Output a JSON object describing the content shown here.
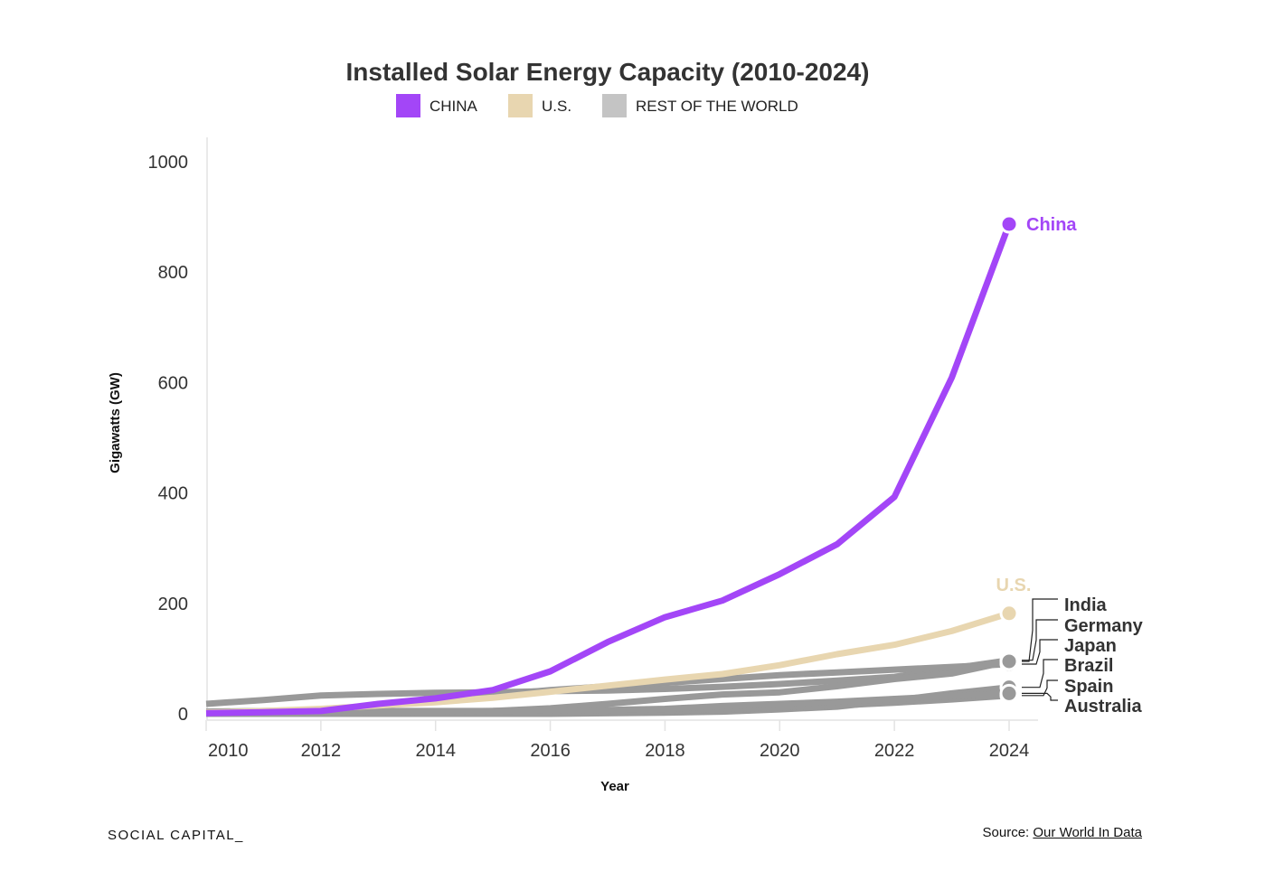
{
  "chart_data": {
    "type": "line",
    "title": "Installed Solar Energy Capacity (2010-2024)",
    "xlabel": "Year",
    "ylabel": "Gigawatts (GW)",
    "xlim": [
      2010,
      2024.5
    ],
    "ylim": [
      0,
      1000
    ],
    "x_ticks": [
      2010,
      2012,
      2014,
      2016,
      2018,
      2020,
      2022,
      2024
    ],
    "y_ticks": [
      0,
      200,
      400,
      600,
      800,
      1000
    ],
    "grid": false,
    "legend": {
      "placement": "top-center",
      "entries": [
        {
          "label": "CHINA",
          "color": "#a346f7"
        },
        {
          "label": "U.S.",
          "color": "#e8d6b0"
        },
        {
          "label": "REST OF THE WORLD",
          "color": "#c4c4c4"
        }
      ]
    },
    "x": [
      2010,
      2011,
      2012,
      2013,
      2014,
      2015,
      2016,
      2017,
      2018,
      2019,
      2020,
      2021,
      2022,
      2023,
      2024
    ],
    "series": [
      {
        "name": "Germany",
        "group": "REST OF THE WORLD",
        "color": "#999999",
        "values": [
          18,
          25,
          33,
          36,
          38,
          39,
          41,
          42,
          45,
          49,
          54,
          60,
          67,
          82,
          97
        ]
      },
      {
        "name": "Japan",
        "group": "REST OF THE WORLD",
        "color": "#999999",
        "values": [
          4,
          5,
          7,
          14,
          24,
          34,
          43,
          50,
          56,
          63,
          70,
          75,
          80,
          85,
          90
        ]
      },
      {
        "name": "India",
        "group": "REST OF THE WORLD",
        "color": "#999999",
        "values": [
          0,
          1,
          1,
          1,
          4,
          5,
          10,
          18,
          27,
          35,
          39,
          50,
          63,
          73,
          95
        ]
      },
      {
        "name": "Brazil",
        "group": "REST OF THE WORLD",
        "color": "#999999",
        "values": [
          0,
          0,
          0,
          0,
          0,
          0,
          0,
          1,
          2,
          4,
          8,
          13,
          24,
          37,
          48
        ]
      },
      {
        "name": "Spain",
        "group": "REST OF THE WORLD",
        "color": "#999999",
        "values": [
          4,
          4,
          5,
          5,
          5,
          5,
          5,
          5,
          5,
          9,
          12,
          15,
          20,
          26,
          33
        ]
      },
      {
        "name": "Australia",
        "group": "REST OF THE WORLD",
        "color": "#999999",
        "values": [
          1,
          1.4,
          2.4,
          3.2,
          4,
          5,
          6,
          7,
          9,
          14,
          18,
          22,
          27,
          32,
          37
        ]
      },
      {
        "name": "U.S.",
        "group": "U.S.",
        "color": "#e8d6b0",
        "values": [
          2,
          5,
          9,
          15,
          21,
          29,
          40,
          51,
          62,
          72,
          88,
          108,
          125,
          150,
          182
        ]
      },
      {
        "name": "China",
        "group": "CHINA",
        "color": "#a346f7",
        "values": [
          1,
          3,
          5,
          18,
          28,
          43,
          77,
          130,
          175,
          205,
          253,
          307,
          393,
          609,
          887
        ]
      }
    ],
    "end_labels": [
      "China",
      "U.S.",
      "India",
      "Germany",
      "Japan",
      "Brazil",
      "Spain",
      "Australia"
    ]
  },
  "footer": {
    "brand": "SOCIAL CAPITAL_",
    "source_prefix": "Source: ",
    "source_link": "Our World In Data"
  }
}
